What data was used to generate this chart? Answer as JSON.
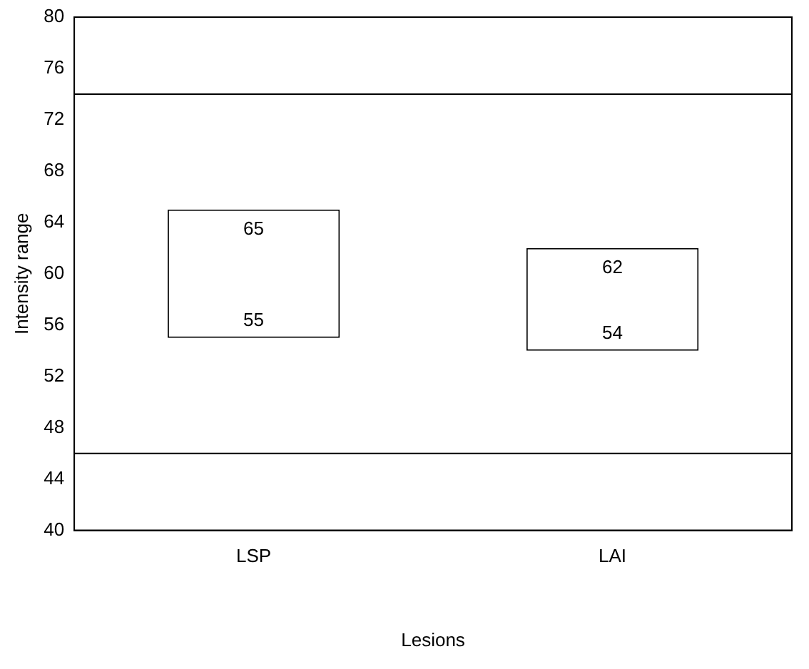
{
  "chart_data": {
    "type": "bar",
    "xlabel": "Lesions",
    "ylabel": "Intensity range",
    "categories": [
      "LSP",
      "LAI"
    ],
    "values": [
      10,
      8
    ],
    "base": [
      55,
      54
    ],
    "color": "#ffffff",
    "ylim": [
      40,
      80
    ],
    "yticks": [
      40,
      44,
      48,
      52,
      56,
      60,
      64,
      68,
      72,
      76,
      80
    ],
    "grid": false,
    "legend": false,
    "ref_lines": [
      {
        "axis": "y",
        "value": 74
      },
      {
        "axis": "y",
        "value": 46
      }
    ],
    "annotations": [
      {
        "text": "65",
        "x": "LSP",
        "y": 65
      },
      {
        "text": "55",
        "x": "LSP",
        "y": 55
      },
      {
        "text": "62",
        "x": "LAI",
        "y": 62
      },
      {
        "text": "54",
        "x": "LAI",
        "y": 54
      }
    ]
  }
}
